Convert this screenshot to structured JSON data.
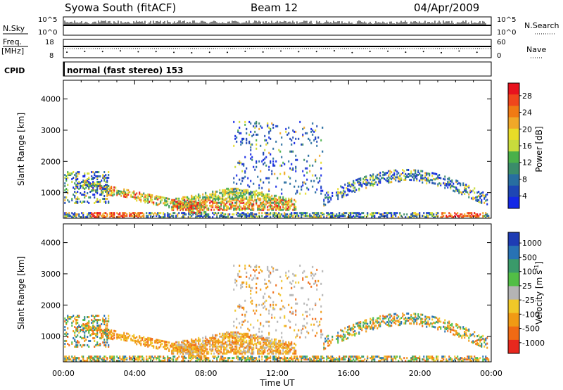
{
  "header": {
    "station": "Syowa South (fitACF)",
    "beam": "Beam 12",
    "date": "04/Apr/2009"
  },
  "labels": {
    "nsky": "N.Sky",
    "nsearch": "N.Search",
    "freq": "Freq.",
    "freq_unit": "[MHz]",
    "nave": "Nave",
    "cpid": "CPID",
    "cpid_value": "normal (fast stereo) 153"
  },
  "chart_data": [
    {
      "type": "line",
      "name": "noise",
      "left_axis": {
        "label": "N.Sky",
        "ticks": [
          "10^5",
          "10^0"
        ]
      },
      "right_axis": {
        "label": "N.Search",
        "ticks": [
          "10^5",
          "10^0"
        ]
      },
      "x": {
        "ticks": [
          "00:00",
          "04:00",
          "08:00",
          "12:00",
          "16:00",
          "20:00",
          "00:00"
        ]
      }
    },
    {
      "type": "scatter",
      "name": "frequency",
      "ylabel": "Freq. [MHz]",
      "left_ticks": [
        "18",
        "8"
      ],
      "right_ticks": [
        "60",
        "0"
      ],
      "right_label": "Nave"
    },
    {
      "type": "heatmap",
      "name": "power",
      "xlabel": "",
      "ylabel": "Slant Range [km]",
      "ylim": [
        180,
        4600
      ],
      "yticks": [
        "1000",
        "2000",
        "3000",
        "4000"
      ],
      "xticks": [
        "00:00",
        "04:00",
        "08:00",
        "12:00",
        "16:00",
        "20:00",
        "00:00"
      ],
      "xlim_hours": [
        0,
        24
      ],
      "colorbar": {
        "label": "Power [dB]",
        "ticks": [
          "28",
          "24",
          "20",
          "16",
          "12",
          "8",
          "4"
        ],
        "colors": [
          "#e8121e",
          "#f0461c",
          "#f07a14",
          "#f0a828",
          "#e8dc28",
          "#c8dc3c",
          "#4ab04a",
          "#3a8c6a",
          "#286ea0",
          "#1e46b4",
          "#1428e6"
        ]
      },
      "regions": [
        {
          "label": "near-range band",
          "x": [
            0.5,
            23.5
          ],
          "y": [
            220,
            420
          ],
          "value": "high"
        },
        {
          "label": "morning arc",
          "x": [
            1.5,
            7.5
          ],
          "y": [
            500,
            1300
          ],
          "value": "mid"
        },
        {
          "label": "central bulge",
          "x": [
            6,
            13
          ],
          "y": [
            500,
            1200
          ],
          "value": "high"
        },
        {
          "label": "scattered echoes",
          "x": [
            10,
            14
          ],
          "y": [
            1200,
            3300
          ],
          "value": "low"
        },
        {
          "label": "evening arc",
          "x": [
            15,
            23.5
          ],
          "y": [
            400,
            2000
          ],
          "value": "mid"
        }
      ]
    },
    {
      "type": "heatmap",
      "name": "velocity",
      "xlabel": "Time UT",
      "ylabel": "Slant Range [km]",
      "ylim": [
        180,
        4600
      ],
      "yticks": [
        "1000",
        "2000",
        "3000",
        "4000"
      ],
      "xticks": [
        "00:00",
        "04:00",
        "08:00",
        "12:00",
        "16:00",
        "20:00",
        "00:00"
      ],
      "xlim_hours": [
        0,
        24
      ],
      "colorbar": {
        "label": "Velocity",
        "unit_base": "[m s",
        "unit_exp": "-1",
        "unit_close": "]",
        "ticks": [
          "1000",
          "500",
          "100",
          "25",
          "-25",
          "-100",
          "-500",
          "-1000"
        ],
        "colors": [
          "#1e3cb4",
          "#2872b4",
          "#3a9a6a",
          "#52be46",
          "#b4b4b4",
          "#f0c828",
          "#f09a14",
          "#f06a14",
          "#e8281e"
        ]
      }
    }
  ]
}
